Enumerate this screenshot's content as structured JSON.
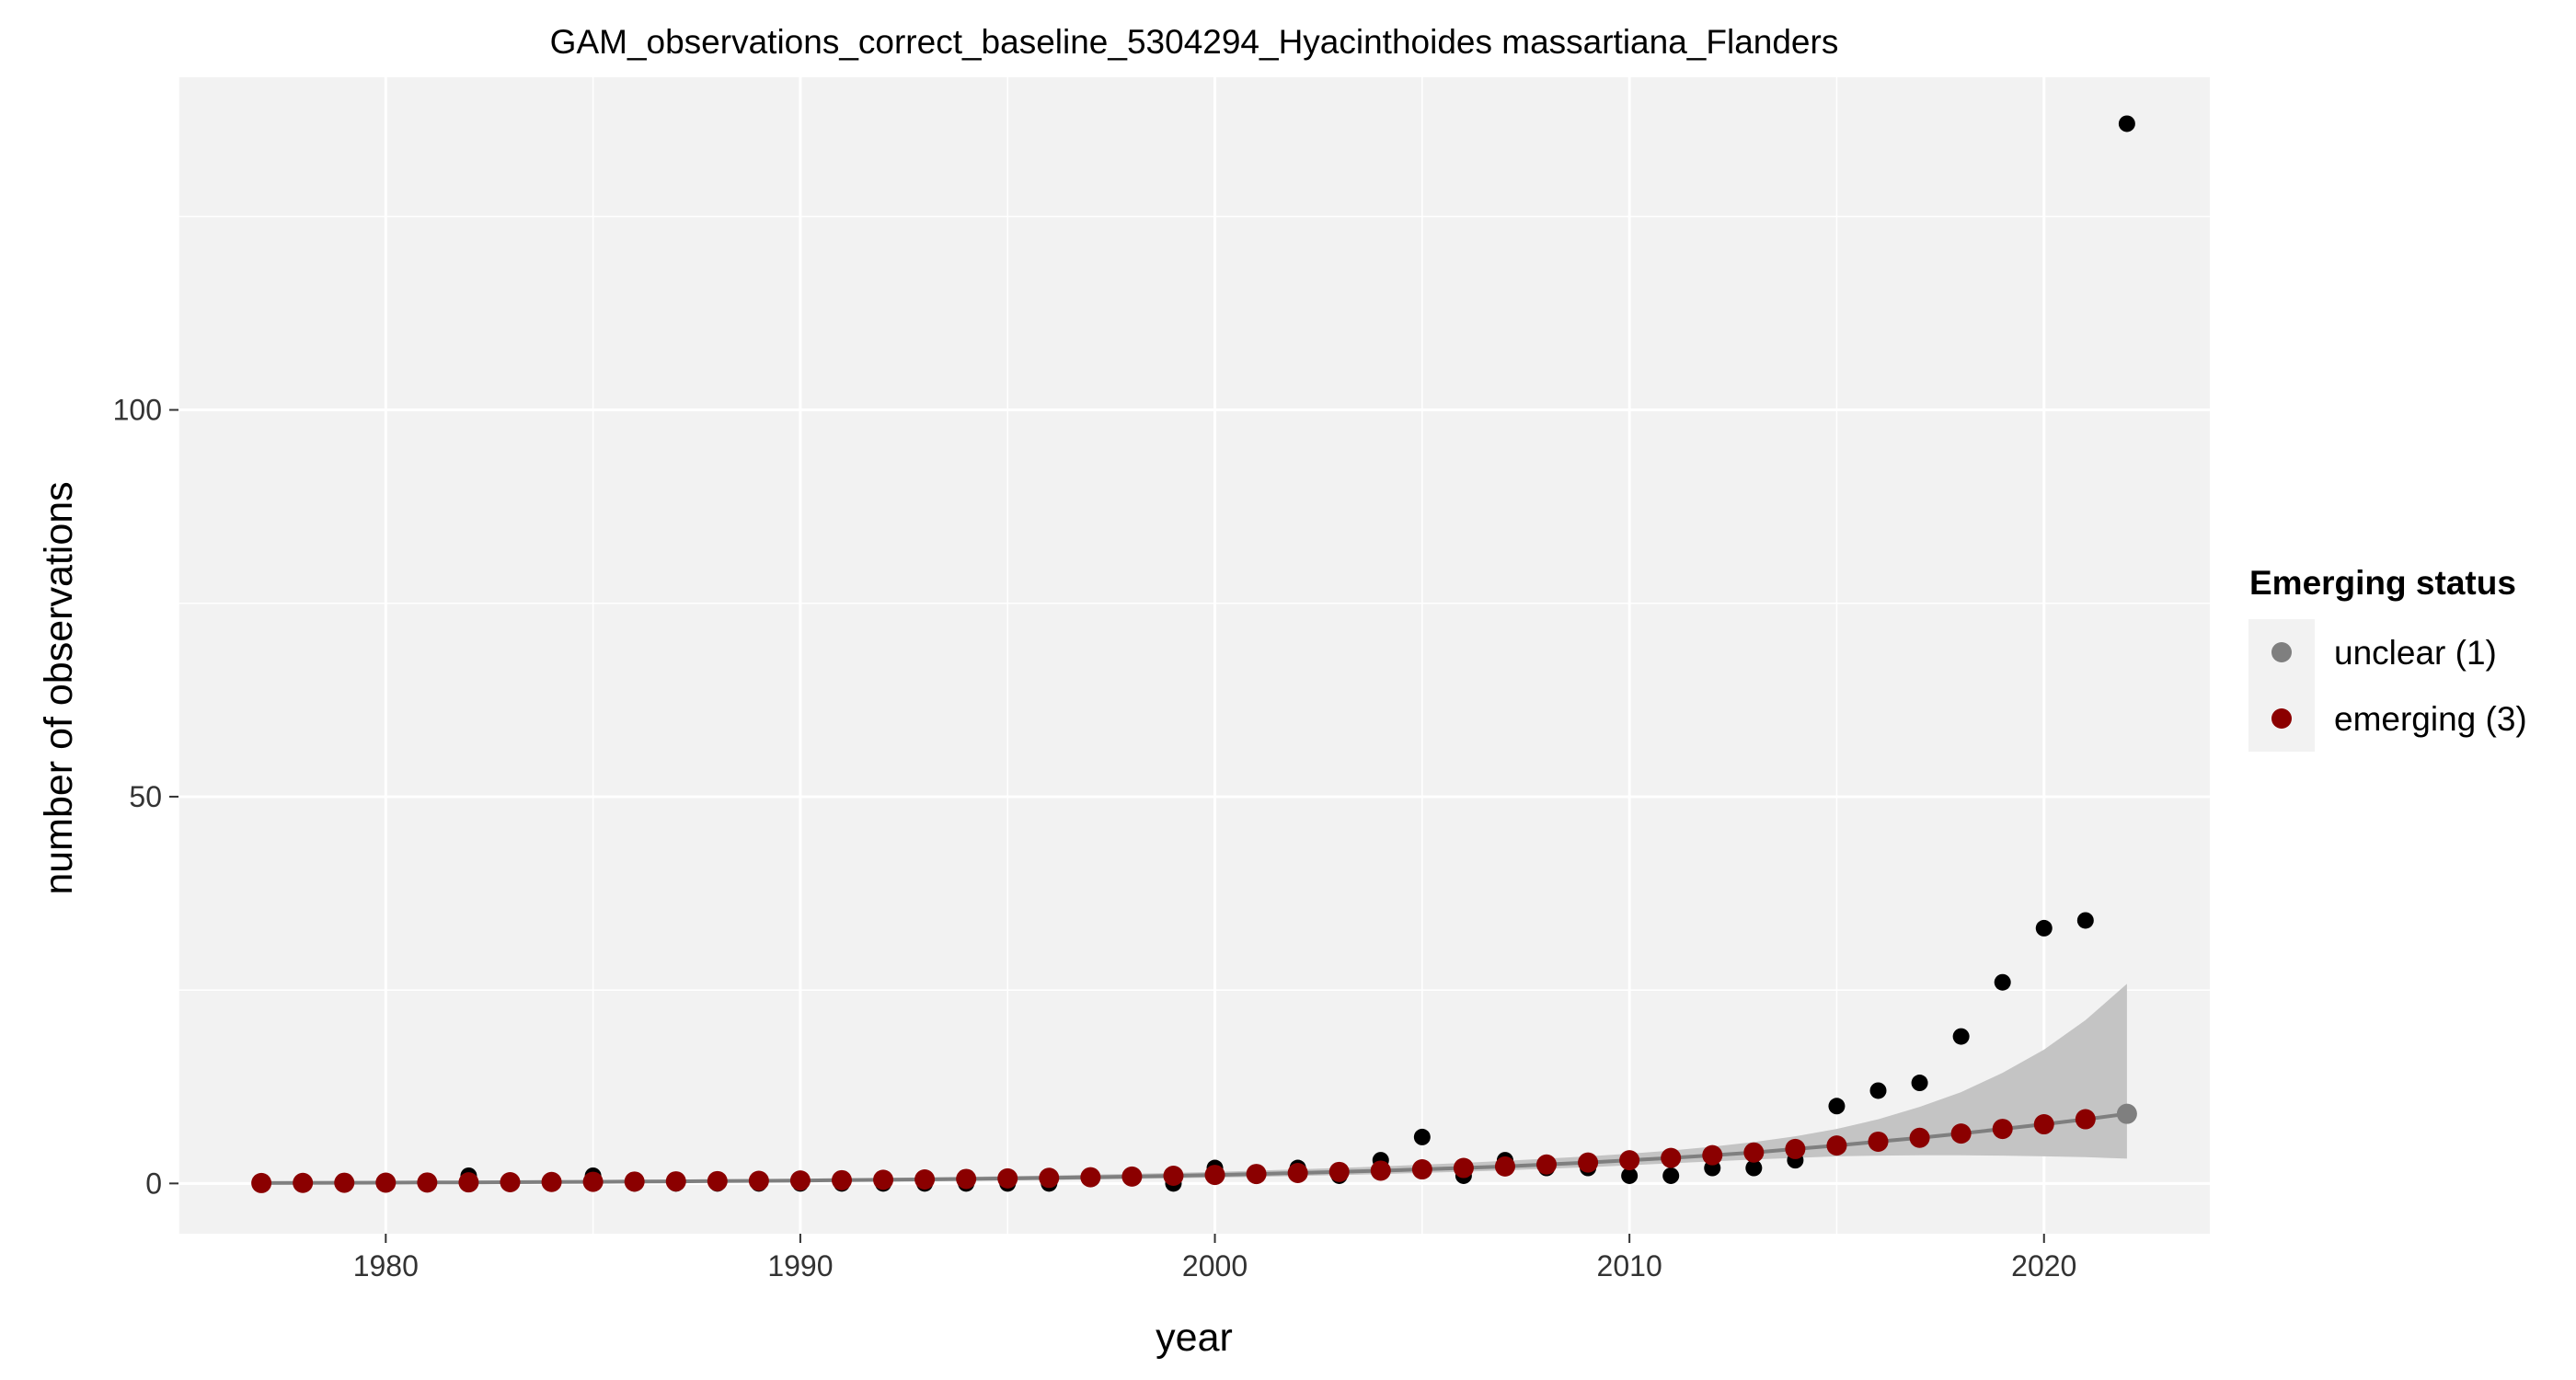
{
  "chart_data": {
    "type": "scatter",
    "title": "GAM_observations_correct_baseline_5304294_Hyacinthoides massartiana_Flanders",
    "xlabel": "year",
    "ylabel": "number of observations",
    "xlim": [
      1975,
      2024
    ],
    "ylim": [
      -6.5,
      143
    ],
    "x_ticks": [
      1980,
      1990,
      2000,
      2010,
      2020
    ],
    "y_ticks": [
      0,
      50,
      100
    ],
    "x_minor_ticks": [
      1975,
      1985,
      1995,
      2005,
      2015
    ],
    "y_minor_ticks": [
      25,
      75,
      125
    ],
    "grid": true,
    "panel_background": "#f2f2f2",
    "observations": {
      "color": "#000000",
      "x": [
        1977,
        1978,
        1979,
        1980,
        1981,
        1982,
        1983,
        1984,
        1985,
        1986,
        1987,
        1988,
        1989,
        1990,
        1991,
        1992,
        1993,
        1994,
        1995,
        1996,
        1997,
        1998,
        1999,
        2000,
        2001,
        2002,
        2003,
        2004,
        2005,
        2006,
        2007,
        2008,
        2009,
        2010,
        2011,
        2012,
        2013,
        2014,
        2015,
        2016,
        2017,
        2018,
        2019,
        2020,
        2021,
        2022
      ],
      "y": [
        0,
        0,
        0,
        0,
        0,
        1,
        0,
        0,
        1,
        0,
        0,
        0,
        0,
        0,
        0,
        0,
        0,
        0,
        0,
        0,
        1,
        1,
        0,
        2,
        1,
        2,
        1,
        3,
        6,
        1,
        3,
        2,
        2,
        1,
        1,
        2,
        2,
        3,
        10,
        12,
        13,
        19,
        26,
        33,
        34,
        137
      ]
    },
    "fit": {
      "line_color": "#7f7f7f",
      "ribbon_color": "#c4c4c4",
      "x": [
        1977,
        1978,
        1979,
        1980,
        1981,
        1982,
        1983,
        1984,
        1985,
        1986,
        1987,
        1988,
        1989,
        1990,
        1991,
        1992,
        1993,
        1994,
        1995,
        1996,
        1997,
        1998,
        1999,
        2000,
        2001,
        2002,
        2003,
        2004,
        2005,
        2006,
        2007,
        2008,
        2009,
        2010,
        2011,
        2012,
        2013,
        2014,
        2015,
        2016,
        2017,
        2018,
        2019,
        2020,
        2021,
        2022
      ],
      "y": [
        0.05,
        0.07,
        0.09,
        0.1,
        0.12,
        0.14,
        0.16,
        0.19,
        0.21,
        0.24,
        0.27,
        0.3,
        0.34,
        0.38,
        0.42,
        0.47,
        0.52,
        0.58,
        0.65,
        0.72,
        0.8,
        0.89,
        0.99,
        1.1,
        1.22,
        1.35,
        1.49,
        1.65,
        1.82,
        2.0,
        2.2,
        2.45,
        2.7,
        3.0,
        3.3,
        3.65,
        4.0,
        4.45,
        4.9,
        5.4,
        5.9,
        6.45,
        7.05,
        7.65,
        8.3,
        9.0
      ],
      "lower": [
        0.01,
        0.02,
        0.03,
        0.04,
        0.05,
        0.06,
        0.07,
        0.08,
        0.1,
        0.11,
        0.13,
        0.15,
        0.17,
        0.2,
        0.23,
        0.26,
        0.3,
        0.34,
        0.39,
        0.45,
        0.51,
        0.58,
        0.66,
        0.75,
        0.85,
        0.96,
        1.08,
        1.21,
        1.36,
        1.52,
        1.7,
        1.9,
        2.1,
        2.35,
        2.6,
        2.85,
        3.1,
        3.3,
        3.5,
        3.6,
        3.65,
        3.65,
        3.6,
        3.5,
        3.4,
        3.2
      ],
      "upper": [
        0.2,
        0.22,
        0.24,
        0.26,
        0.28,
        0.31,
        0.34,
        0.37,
        0.4,
        0.43,
        0.47,
        0.51,
        0.56,
        0.61,
        0.66,
        0.72,
        0.79,
        0.86,
        0.94,
        1.03,
        1.13,
        1.24,
        1.36,
        1.5,
        1.65,
        1.82,
        2.0,
        2.2,
        2.42,
        2.66,
        2.92,
        3.2,
        3.5,
        3.85,
        4.25,
        4.75,
        5.35,
        6.1,
        7.05,
        8.3,
        9.9,
        11.8,
        14.3,
        17.3,
        21.1,
        25.8
      ]
    },
    "status_points": [
      {
        "name": "unclear (1)",
        "color": "#7f7f7f",
        "x": [
          2022
        ],
        "y": [
          9.0
        ]
      },
      {
        "name": "emerging (3)",
        "color": "#8b0000",
        "x": [
          1977,
          1978,
          1979,
          1980,
          1981,
          1982,
          1983,
          1984,
          1985,
          1986,
          1987,
          1988,
          1989,
          1990,
          1991,
          1992,
          1993,
          1994,
          1995,
          1996,
          1997,
          1998,
          1999,
          2000,
          2001,
          2002,
          2003,
          2004,
          2005,
          2006,
          2007,
          2008,
          2009,
          2010,
          2011,
          2012,
          2013,
          2014,
          2015,
          2016,
          2017,
          2018,
          2019,
          2020,
          2021
        ],
        "y": [
          0.05,
          0.07,
          0.09,
          0.1,
          0.12,
          0.14,
          0.16,
          0.19,
          0.21,
          0.24,
          0.27,
          0.3,
          0.34,
          0.38,
          0.42,
          0.47,
          0.52,
          0.58,
          0.65,
          0.72,
          0.8,
          0.89,
          0.99,
          1.1,
          1.22,
          1.35,
          1.49,
          1.65,
          1.82,
          2.0,
          2.2,
          2.45,
          2.7,
          3.0,
          3.3,
          3.65,
          4.0,
          4.45,
          4.9,
          5.4,
          5.9,
          6.45,
          7.05,
          7.65,
          8.3
        ]
      }
    ],
    "legend": {
      "title": "Emerging status",
      "position": "right",
      "background": "#f2f2f2",
      "items": [
        {
          "label": "unclear (1)",
          "color": "#7f7f7f"
        },
        {
          "label": "emerging (3)",
          "color": "#8b0000"
        }
      ]
    }
  }
}
